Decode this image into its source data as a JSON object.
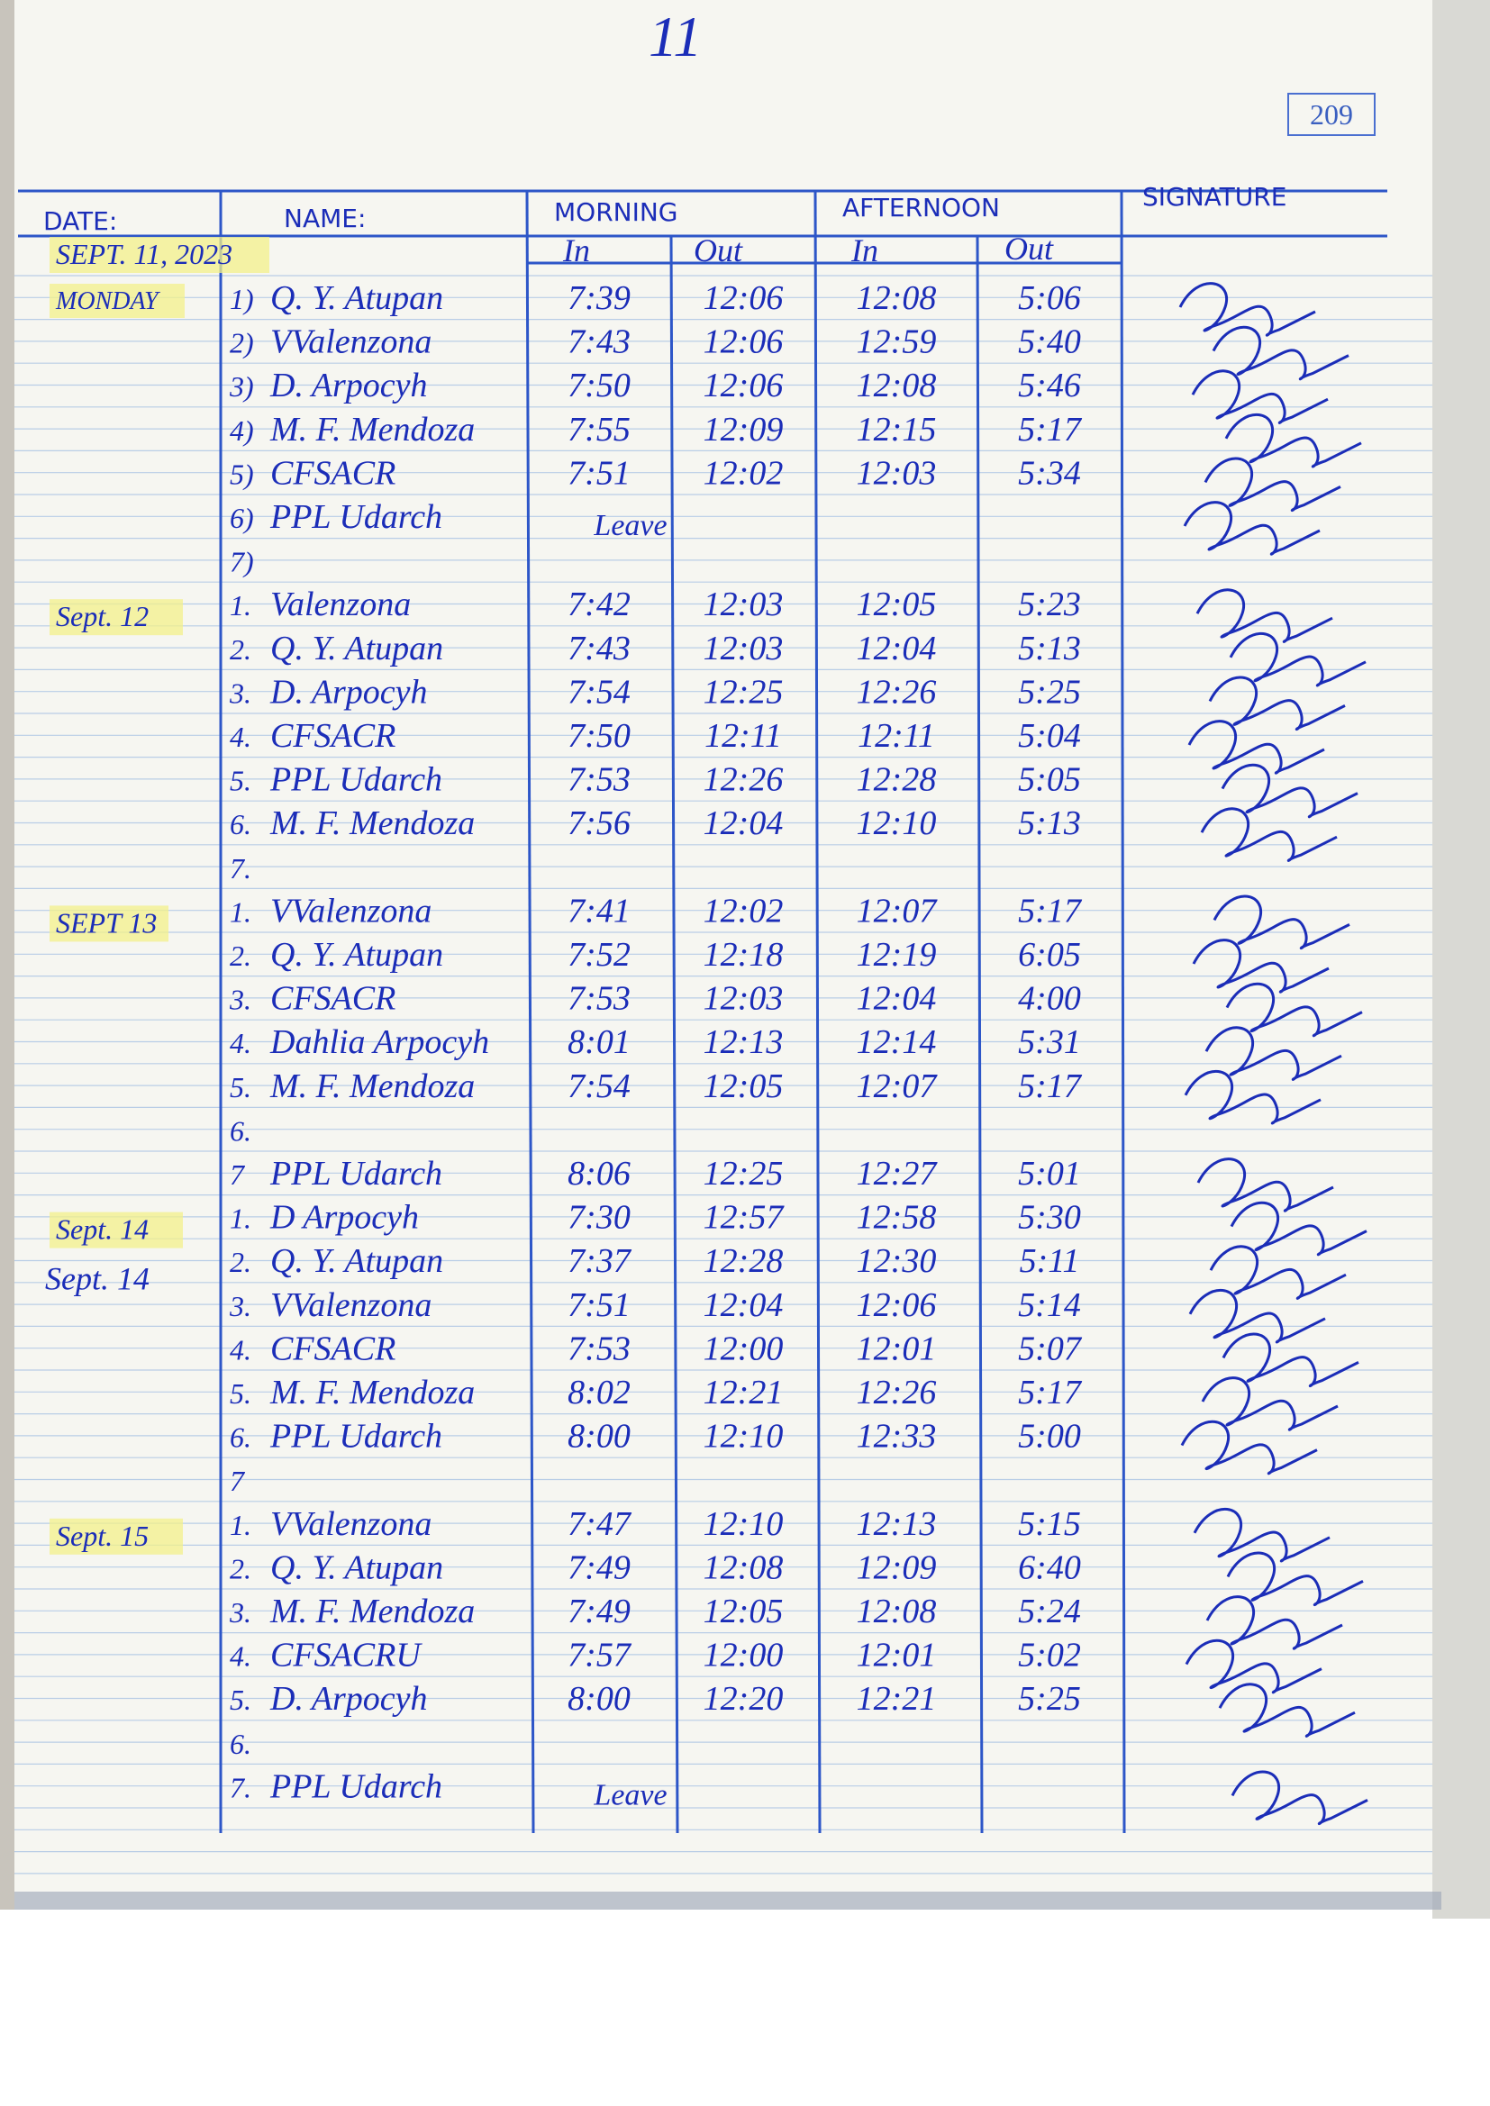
{
  "page_mark": "11",
  "page_number": "209",
  "header": {
    "date": "DATE:",
    "name": "NAME:",
    "morning": "MORNING",
    "afternoon": "AFTERNOON",
    "signature": "SIGNATURE",
    "morning_in": "In",
    "morning_out": "Out",
    "afternoon_in": "In",
    "afternoon_out": "Out"
  },
  "log": {
    "groups": [
      {
        "date": "SEPT. 11, 2023",
        "day": "MONDAY",
        "rows": [
          {
            "no": "1)",
            "name": "Q. Y. Atupan",
            "morning_in": "7:39",
            "morning_out": "12:06",
            "afternoon_in": "12:08",
            "afternoon_out": "5:06"
          },
          {
            "no": "2)",
            "name": "VValenzona",
            "morning_in": "7:43",
            "morning_out": "12:06",
            "afternoon_in": "12:59",
            "afternoon_out": "5:40"
          },
          {
            "no": "3)",
            "name": "D. Arpocyh",
            "morning_in": "7:50",
            "morning_out": "12:06",
            "afternoon_in": "12:08",
            "afternoon_out": "5:46"
          },
          {
            "no": "4)",
            "name": "M. F. Mendoza",
            "morning_in": "7:55",
            "morning_out": "12:09",
            "afternoon_in": "12:15",
            "afternoon_out": "5:17"
          },
          {
            "no": "5)",
            "name": "CFSACR",
            "morning_in": "7:51",
            "morning_out": "12:02",
            "afternoon_in": "12:03",
            "afternoon_out": "5:34"
          },
          {
            "no": "6)",
            "name": "PPL Udarch",
            "remark": "Leave"
          },
          {
            "no": "7)"
          }
        ]
      },
      {
        "date": "Sept. 12",
        "rows": [
          {
            "no": "1.",
            "name": "Valenzona",
            "morning_in": "7:42",
            "morning_out": "12:03",
            "afternoon_in": "12:05",
            "afternoon_out": "5:23"
          },
          {
            "no": "2.",
            "name": "Q. Y. Atupan",
            "morning_in": "7:43",
            "morning_out": "12:03",
            "afternoon_in": "12:04",
            "afternoon_out": "5:13"
          },
          {
            "no": "3.",
            "name": "D. Arpocyh",
            "morning_in": "7:54",
            "morning_out": "12:25",
            "afternoon_in": "12:26",
            "afternoon_out": "5:25"
          },
          {
            "no": "4.",
            "name": "CFSACR",
            "morning_in": "7:50",
            "morning_out": "12:11",
            "afternoon_in": "12:11",
            "afternoon_out": "5:04"
          },
          {
            "no": "5.",
            "name": "PPL Udarch",
            "morning_in": "7:53",
            "morning_out": "12:26",
            "afternoon_in": "12:28",
            "afternoon_out": "5:05"
          },
          {
            "no": "6.",
            "name": "M. F. Mendoza",
            "morning_in": "7:56",
            "morning_out": "12:04",
            "afternoon_in": "12:10",
            "afternoon_out": "5:13"
          },
          {
            "no": "7."
          }
        ]
      },
      {
        "date": "SEPT 13",
        "rows": [
          {
            "no": "1.",
            "name": "VValenzona",
            "morning_in": "7:41",
            "morning_out": "12:02",
            "afternoon_in": "12:07",
            "afternoon_out": "5:17"
          },
          {
            "no": "2.",
            "name": "Q. Y. Atupan",
            "morning_in": "7:52",
            "morning_out": "12:18",
            "afternoon_in": "12:19",
            "afternoon_out": "6:05"
          },
          {
            "no": "3.",
            "name": "CFSACR",
            "morning_in": "7:53",
            "morning_out": "12:03",
            "afternoon_in": "12:04",
            "afternoon_out": "4:00"
          },
          {
            "no": "4.",
            "name": "Dahlia Arpocyh",
            "morning_in": "8:01",
            "morning_out": "12:13",
            "afternoon_in": "12:14",
            "afternoon_out": "5:31"
          },
          {
            "no": "5.",
            "name": "M. F. Mendoza",
            "morning_in": "7:54",
            "morning_out": "12:05",
            "afternoon_in": "12:07",
            "afternoon_out": "5:17"
          },
          {
            "no": "6."
          },
          {
            "no": "7",
            "name": "PPL Udarch",
            "morning_in": "8:06",
            "morning_out": "12:25",
            "afternoon_in": "12:27",
            "afternoon_out": "5:01"
          }
        ]
      },
      {
        "date": "Sept. 14",
        "date_repeat": "Sept. 14",
        "rows": [
          {
            "no": "1.",
            "name": "D Arpocyh",
            "morning_in": "7:30",
            "morning_out": "12:57",
            "afternoon_in": "12:58",
            "afternoon_out": "5:30"
          },
          {
            "no": "2.",
            "name": "Q. Y. Atupan",
            "morning_in": "7:37",
            "morning_out": "12:28",
            "afternoon_in": "12:30",
            "afternoon_out": "5:11"
          },
          {
            "no": "3.",
            "name": "VValenzona",
            "morning_in": "7:51",
            "morning_out": "12:04",
            "afternoon_in": "12:06",
            "afternoon_out": "5:14"
          },
          {
            "no": "4.",
            "name": "CFSACR",
            "morning_in": "7:53",
            "morning_out": "12:00",
            "afternoon_in": "12:01",
            "afternoon_out": "5:07"
          },
          {
            "no": "5.",
            "name": "M. F. Mendoza",
            "morning_in": "8:02",
            "morning_out": "12:21",
            "afternoon_in": "12:26",
            "afternoon_out": "5:17"
          },
          {
            "no": "6.",
            "name": "PPL Udarch",
            "morning_in": "8:00",
            "morning_out": "12:10",
            "afternoon_in": "12:33",
            "afternoon_out": "5:00"
          },
          {
            "no": "7"
          }
        ]
      },
      {
        "date": "Sept. 15",
        "rows": [
          {
            "no": "1.",
            "name": "VValenzona",
            "morning_in": "7:47",
            "morning_out": "12:10",
            "afternoon_in": "12:13",
            "afternoon_out": "5:15"
          },
          {
            "no": "2.",
            "name": "Q. Y. Atupan",
            "morning_in": "7:49",
            "morning_out": "12:08",
            "afternoon_in": "12:09",
            "afternoon_out": "6:40"
          },
          {
            "no": "3.",
            "name": "M. F. Mendoza",
            "morning_in": "7:49",
            "morning_out": "12:05",
            "afternoon_in": "12:08",
            "afternoon_out": "5:24"
          },
          {
            "no": "4.",
            "name": "CFSACRU",
            "morning_in": "7:57",
            "morning_out": "12:00",
            "afternoon_in": "12:01",
            "afternoon_out": "5:02"
          },
          {
            "no": "5.",
            "name": "D. Arpocyh",
            "morning_in": "8:00",
            "morning_out": "12:20",
            "afternoon_in": "12:21",
            "afternoon_out": "5:25"
          },
          {
            "no": "6."
          },
          {
            "no": "7.",
            "name": "PPL Udarch",
            "remark": "Leave"
          }
        ]
      }
    ]
  }
}
